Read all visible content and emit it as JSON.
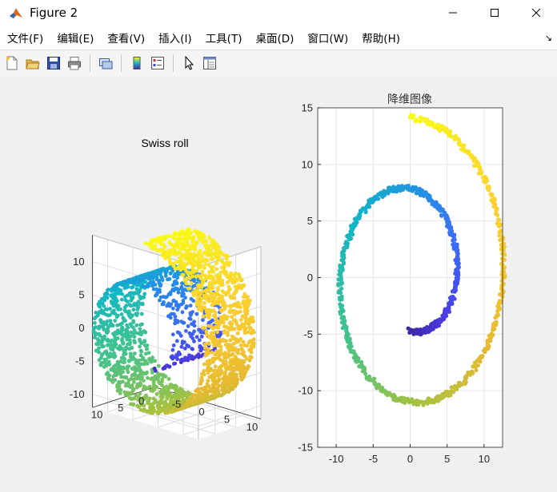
{
  "window": {
    "title": "Figure 2"
  },
  "menu": [
    {
      "label": "文件(F)"
    },
    {
      "label": "编辑(E)"
    },
    {
      "label": "查看(V)"
    },
    {
      "label": "插入(I)"
    },
    {
      "label": "工具(T)"
    },
    {
      "label": "桌面(D)"
    },
    {
      "label": "窗口(W)"
    },
    {
      "label": "帮助(H)"
    }
  ],
  "toolbar": {
    "icons": [
      "new-figure-icon",
      "open-file-icon",
      "save-icon",
      "print-icon",
      "link-icon",
      "colorbar-icon",
      "legend-icon",
      "pointer-icon",
      "property-inspector-icon"
    ]
  },
  "colors": {
    "colormap": [
      "#3e26a8",
      "#4a3ee8",
      "#3b6ff3",
      "#1f96e0",
      "#11b6c6",
      "#40c28e",
      "#9fc243",
      "#e7b931",
      "#fcd030",
      "#f9fb14"
    ]
  },
  "chart_data": [
    {
      "type": "scatter",
      "subtype": "3d-scatter",
      "title": "Swiss roll",
      "x_ticks": [
        "-5",
        "0",
        "5",
        "10"
      ],
      "y_ticks": [
        "0",
        "5",
        "10"
      ],
      "z_ticks": [
        "-10",
        "-5",
        "0",
        "5",
        "10"
      ],
      "grid": true,
      "colormap": "parula"
    },
    {
      "type": "scatter",
      "title": "降维图像",
      "xlim": [
        -12.5,
        12.5
      ],
      "ylim": [
        -15,
        15
      ],
      "x_ticks": [
        "-10",
        "-5",
        "0",
        "5",
        "10"
      ],
      "y_ticks": [
        "-15",
        "-10",
        "-5",
        "0",
        "5",
        "10",
        "15"
      ],
      "grid": true,
      "colormap": "parula",
      "series": [
        {
          "t_range": [
            4.71,
            14.14
          ],
          "x_formula": "t*cos(t)",
          "y_formula": "t*sin(t)"
        }
      ]
    }
  ]
}
